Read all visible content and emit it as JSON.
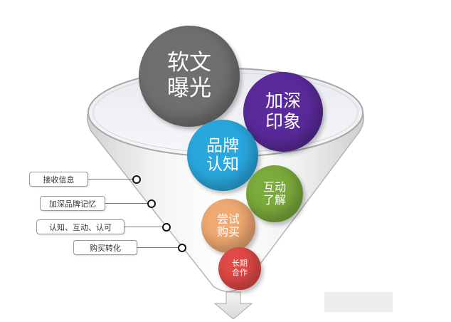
{
  "bubbles": [
    {
      "id": "exposure",
      "lines": [
        "软文",
        "曝光"
      ],
      "color": "#6f6f6f"
    },
    {
      "id": "impression",
      "lines": [
        "加深",
        "印象"
      ],
      "color": "#5a2a9a"
    },
    {
      "id": "brand",
      "lines": [
        "品牌",
        "认知"
      ],
      "color": "#29a8de"
    },
    {
      "id": "interact",
      "lines": [
        "互动",
        "了解"
      ],
      "color": "#7bab3b"
    },
    {
      "id": "trial",
      "lines": [
        "尝试",
        "购买"
      ],
      "color": "#f0a972"
    },
    {
      "id": "partner",
      "lines": [
        "长期",
        "合作"
      ],
      "color": "#e14a46"
    }
  ],
  "stages": [
    {
      "label": "接收信息"
    },
    {
      "label": "加深品牌记忆"
    },
    {
      "label": "认知、互动、认可"
    },
    {
      "label": "购买转化"
    }
  ]
}
